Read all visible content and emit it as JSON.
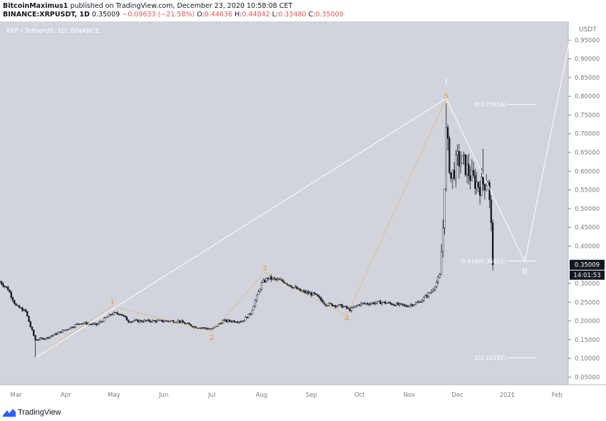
{
  "header": {
    "author": "BitcoinMaximus1",
    "published": "published on TradingView.com, December 23, 2020 10:58:08 CET",
    "symbol": "BINANCE:XRPUSDT, 1D",
    "last": "0.35009",
    "change": "−0.09633 (−21.58%)",
    "o_label": "O:",
    "o_value": "0.44636",
    "h_label": "H:",
    "h_value": "0.44842",
    "l_label": "L:",
    "l_value": "0.33480",
    "c_label": "C:",
    "c_value": "0.35009"
  },
  "colors": {
    "background": "#d1d4dc",
    "candle": "#131722",
    "accent": "#f7931a",
    "line": "#ffffff",
    "down": "#ef5350"
  },
  "footer": {
    "brand": "TradingView",
    "icon": "tradingview-logo-icon"
  },
  "chart_data": {
    "type": "candlestick",
    "title": "XRP / TetherUS, 1D, BINANCE",
    "currency": "USDT",
    "ylim": [
      0.03,
      1.0
    ],
    "y_ticks": [
      "0.95000",
      "0.90000",
      "0.85000",
      "0.80000",
      "0.75000",
      "0.70000",
      "0.65000",
      "0.60000",
      "0.55000",
      "0.50000",
      "0.45000",
      "0.40000",
      "0.30000",
      "0.25000",
      "0.20000",
      "0.15000",
      "0.10000",
      "0.05000"
    ],
    "x_ticks": [
      "Mar",
      "Apr",
      "May",
      "Jun",
      "Jul",
      "Aug",
      "Sep",
      "Oct",
      "Nov",
      "Dec",
      "2021",
      "Feb"
    ],
    "x_range": [
      "2020-02-20",
      "2021-02-08"
    ],
    "last_price": {
      "label": "0.35009",
      "value": 0.35009
    },
    "countdown": {
      "label": "14:01:53"
    },
    "wave_labels": [
      {
        "text": "1",
        "date": "2020-04-30",
        "y": 0.245
      },
      {
        "text": "2",
        "date": "2020-07-01",
        "y": 0.15
      },
      {
        "text": "3",
        "date": "2020-08-03",
        "y": 0.335
      },
      {
        "text": "4",
        "date": "2020-09-23",
        "y": 0.2
      },
      {
        "text": "5",
        "date": "2020-11-24",
        "y": 0.795
      },
      {
        "text": "I",
        "date": "2020-11-24",
        "y": 0.83
      },
      {
        "text": "II",
        "date": "2021-01-12",
        "y": 0.325
      }
    ],
    "fib_levels": [
      {
        "label": "0(0.77816)",
        "value": 0.77816
      },
      {
        "label": "0.618(0.36025)",
        "value": 0.36025
      },
      {
        "label": "1(0.10192)",
        "value": 0.10192
      }
    ],
    "white_lines": [
      [
        [
          "2020-03-13",
          0.102
        ],
        [
          "2020-11-24",
          0.794
        ]
      ],
      [
        [
          "2020-11-24",
          0.794
        ],
        [
          "2021-01-12",
          0.358
        ],
        [
          "2021-02-11",
          0.995
        ]
      ]
    ],
    "orange_lines": [
      [
        [
          "2020-03-13",
          0.102
        ],
        [
          "2020-04-30",
          0.24
        ],
        [
          "2020-07-01",
          0.172
        ],
        [
          "2020-08-03",
          0.33
        ],
        [
          "2020-09-23",
          0.215
        ],
        [
          "2020-11-24",
          0.794
        ]
      ]
    ],
    "price_path": [
      [
        "2020-02-20",
        0.305
      ],
      [
        "2020-02-25",
        0.285
      ],
      [
        "2020-03-01",
        0.24
      ],
      [
        "2020-03-07",
        0.225
      ],
      [
        "2020-03-10",
        0.185
      ],
      [
        "2020-03-13",
        0.15
      ],
      [
        "2020-03-20",
        0.155
      ],
      [
        "2020-03-31",
        0.175
      ],
      [
        "2020-04-10",
        0.195
      ],
      [
        "2020-04-20",
        0.19
      ],
      [
        "2020-04-30",
        0.22
      ],
      [
        "2020-05-05",
        0.22
      ],
      [
        "2020-05-10",
        0.2
      ],
      [
        "2020-05-20",
        0.2
      ],
      [
        "2020-06-01",
        0.2
      ],
      [
        "2020-06-10",
        0.2
      ],
      [
        "2020-06-20",
        0.185
      ],
      [
        "2020-07-01",
        0.178
      ],
      [
        "2020-07-08",
        0.2
      ],
      [
        "2020-07-20",
        0.2
      ],
      [
        "2020-07-25",
        0.22
      ],
      [
        "2020-08-01",
        0.3
      ],
      [
        "2020-08-05",
        0.315
      ],
      [
        "2020-08-15",
        0.305
      ],
      [
        "2020-08-25",
        0.28
      ],
      [
        "2020-09-03",
        0.27
      ],
      [
        "2020-09-10",
        0.245
      ],
      [
        "2020-09-20",
        0.24
      ],
      [
        "2020-09-25",
        0.23
      ],
      [
        "2020-10-01",
        0.245
      ],
      [
        "2020-10-15",
        0.25
      ],
      [
        "2020-10-30",
        0.24
      ],
      [
        "2020-11-07",
        0.25
      ],
      [
        "2020-11-15",
        0.28
      ],
      [
        "2020-11-20",
        0.32
      ],
      [
        "2020-11-22",
        0.45
      ],
      [
        "2020-11-24",
        0.7
      ],
      [
        "2020-11-27",
        0.58
      ],
      [
        "2020-12-01",
        0.63
      ],
      [
        "2020-12-05",
        0.62
      ],
      [
        "2020-12-10",
        0.58
      ],
      [
        "2020-12-15",
        0.56
      ],
      [
        "2020-12-18",
        0.57
      ],
      [
        "2020-12-20",
        0.58
      ],
      [
        "2020-12-22",
        0.45
      ],
      [
        "2020-12-23",
        0.35009
      ]
    ],
    "extremes": [
      {
        "date": "2020-03-13",
        "low": 0.102
      },
      {
        "date": "2020-11-24",
        "high": 0.781
      },
      {
        "date": "2020-12-17",
        "high": 0.66
      },
      {
        "date": "2020-12-23",
        "low": 0.3348
      }
    ]
  }
}
